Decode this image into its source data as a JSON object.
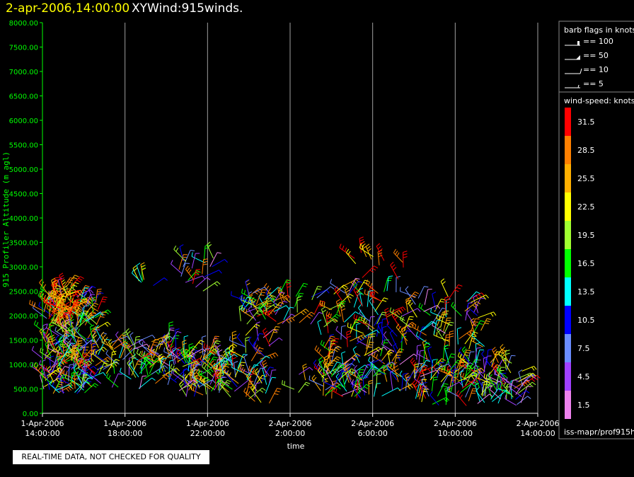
{
  "header": {
    "time": "2-apr-2006,14:00:00",
    "name": "XYWind:915winds."
  },
  "footer": {
    "qc_notice": "REAL-TIME DATA, NOT CHECKED FOR QUALITY",
    "path": "iss-mapr/prof915h"
  },
  "legend": {
    "barb_title": "barb flags in knots",
    "barbs": [
      {
        "label": "== 100"
      },
      {
        "label": "== 50"
      },
      {
        "label": "== 10"
      },
      {
        "label": "== 5"
      }
    ],
    "speed_title": "wind-speed: knots",
    "speed_bins": [
      {
        "label": "31.5",
        "color": "#ff0000"
      },
      {
        "label": "28.5",
        "color": "#ff8000"
      },
      {
        "label": "25.5",
        "color": "#ffb000"
      },
      {
        "label": "22.5",
        "color": "#ffff00"
      },
      {
        "label": "19.5",
        "color": "#a0ff30"
      },
      {
        "label": "16.5",
        "color": "#00ff00"
      },
      {
        "label": "13.5",
        "color": "#00ffff"
      },
      {
        "label": "10.5",
        "color": "#0000ff"
      },
      {
        "label": "7.5",
        "color": "#6a8cff"
      },
      {
        "label": "4.5",
        "color": "#a040ff"
      },
      {
        "label": "1.5",
        "color": "#ee82ee"
      }
    ]
  },
  "chart_data": {
    "type": "scatter",
    "ylabel": "915 Profiler Altitude (m agl)",
    "xlabel": "time",
    "ylim": [
      0,
      8000
    ],
    "yticks": [
      "0.00",
      "500.00",
      "1000.00",
      "1500.00",
      "2000.00",
      "2500.00",
      "3000.00",
      "3500.00",
      "4000.00",
      "4500.00",
      "5000.00",
      "5500.00",
      "6000.00",
      "6500.00",
      "7000.00",
      "7500.00",
      "8000.00"
    ],
    "xticks": [
      {
        "date": "1-Apr-2006",
        "time": "14:00:00"
      },
      {
        "date": "1-Apr-2006",
        "time": "18:00:00"
      },
      {
        "date": "1-Apr-2006",
        "time": "22:00:00"
      },
      {
        "date": "2-Apr-2006",
        "time": "2:00:00"
      },
      {
        "date": "2-Apr-2006",
        "time": "6:00:00"
      },
      {
        "date": "2-Apr-2006",
        "time": "10:00:00"
      },
      {
        "date": "2-Apr-2006",
        "time": "14:00:00"
      }
    ],
    "xlim_hours": [
      0,
      24
    ],
    "grid": "vertical",
    "axis_color": "#00ff00",
    "groups": [
      {
        "t0": 0.0,
        "t1": 2.7,
        "h0": 400,
        "h1": 2400,
        "n": 220
      },
      {
        "t0": 0.3,
        "t1": 1.4,
        "h0": 1800,
        "h1": 2600,
        "n": 40,
        "speed": [
          22,
          33
        ]
      },
      {
        "t0": 2.7,
        "t1": 6.5,
        "h0": 500,
        "h1": 1500,
        "n": 90
      },
      {
        "t0": 6.5,
        "t1": 9.5,
        "h0": 300,
        "h1": 1300,
        "n": 110
      },
      {
        "t0": 4.5,
        "t1": 5.5,
        "h0": 2550,
        "h1": 2750,
        "n": 6
      },
      {
        "t0": 6.6,
        "t1": 8.3,
        "h0": 2500,
        "h1": 3250,
        "n": 20
      },
      {
        "t0": 9.7,
        "t1": 11.2,
        "h0": 200,
        "h1": 1600,
        "n": 40
      },
      {
        "t0": 9.5,
        "t1": 13.3,
        "h0": 1800,
        "h1": 2500,
        "n": 55
      },
      {
        "t0": 12.2,
        "t1": 15.0,
        "h0": 300,
        "h1": 900,
        "n": 20
      },
      {
        "t0": 13.5,
        "t1": 17.5,
        "h0": 1000,
        "h1": 2600,
        "n": 90
      },
      {
        "t0": 15.0,
        "t1": 17.5,
        "h0": 2700,
        "h1": 3300,
        "n": 12,
        "speed": [
          22,
          33
        ]
      },
      {
        "t0": 13.5,
        "t1": 18.0,
        "h0": 300,
        "h1": 1000,
        "n": 70
      },
      {
        "t0": 17.5,
        "t1": 21.5,
        "h0": 1300,
        "h1": 2400,
        "n": 60
      },
      {
        "t0": 18.0,
        "t1": 23.3,
        "h0": 150,
        "h1": 1100,
        "n": 150
      }
    ]
  }
}
